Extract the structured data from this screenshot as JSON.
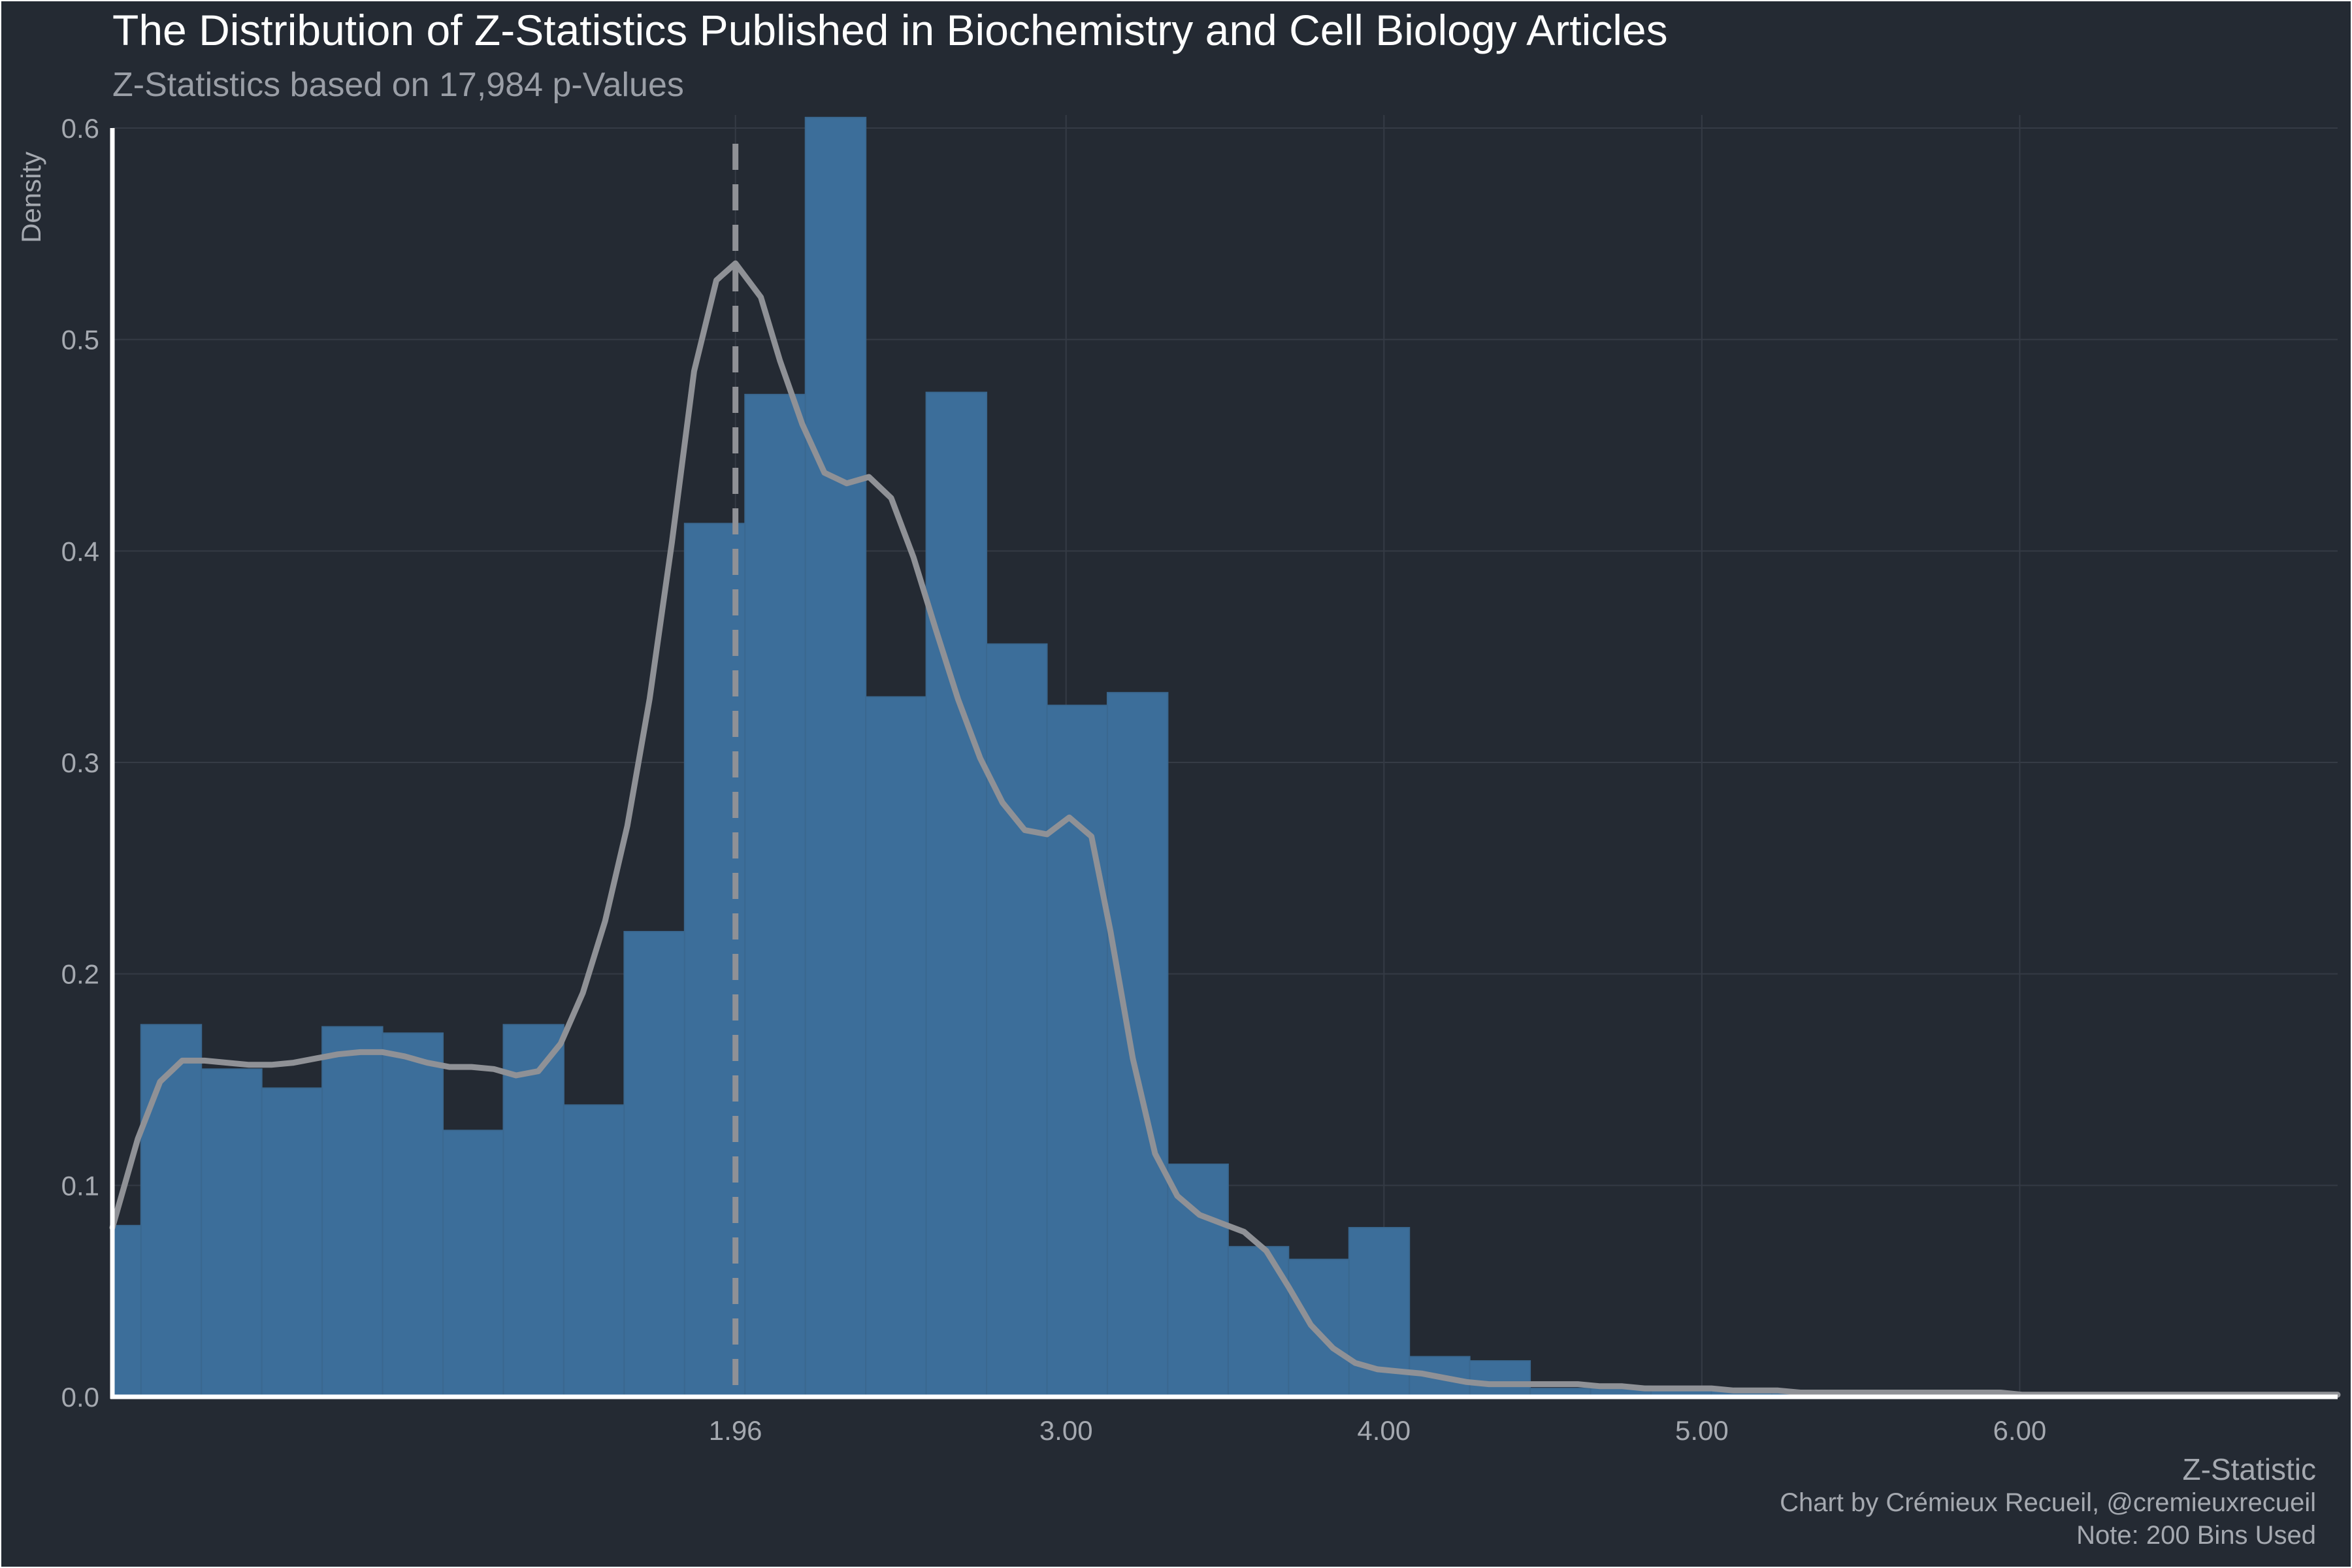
{
  "chart_data": {
    "type": "bar",
    "title": "The Distribution of Z-Statistics Published in Biochemistry and Cell Biology Articles",
    "subtitle": "Z-Statistics based on 17,984 p-Values",
    "xlabel": "Z-Statistic",
    "ylabel": "Density",
    "caption": [
      "Chart by Crémieux Recueil, @cremieuxrecueil",
      "Note: 200 Bins Used"
    ],
    "xlim": [
      0.0,
      7.0
    ],
    "ylim": [
      0.0,
      0.6
    ],
    "grid": true,
    "x_ticks": [
      {
        "value": 1.96,
        "label": "1.96"
      },
      {
        "value": 3.0,
        "label": "3.00"
      },
      {
        "value": 4.0,
        "label": "4.00"
      },
      {
        "value": 5.0,
        "label": "5.00"
      },
      {
        "value": 6.0,
        "label": "6.00"
      }
    ],
    "y_ticks": [
      {
        "value": 0.0,
        "label": "0.0"
      },
      {
        "value": 0.1,
        "label": "0.1"
      },
      {
        "value": 0.2,
        "label": "0.2"
      },
      {
        "value": 0.3,
        "label": "0.3"
      },
      {
        "value": 0.4,
        "label": "0.4"
      },
      {
        "value": 0.5,
        "label": "0.5"
      },
      {
        "value": 0.6,
        "label": "0.6"
      }
    ],
    "bins": [
      {
        "x0": 0.0,
        "x1": 0.09,
        "density": 0.081
      },
      {
        "x0": 0.09,
        "x1": 0.28,
        "density": 0.176
      },
      {
        "x0": 0.28,
        "x1": 0.47,
        "density": 0.155
      },
      {
        "x0": 0.47,
        "x1": 0.66,
        "density": 0.146
      },
      {
        "x0": 0.66,
        "x1": 0.85,
        "density": 0.175
      },
      {
        "x0": 0.85,
        "x1": 1.04,
        "density": 0.172
      },
      {
        "x0": 1.04,
        "x1": 1.23,
        "density": 0.126
      },
      {
        "x0": 1.23,
        "x1": 1.42,
        "density": 0.176
      },
      {
        "x0": 1.42,
        "x1": 1.61,
        "density": 0.138
      },
      {
        "x0": 1.61,
        "x1": 1.8,
        "density": 0.22
      },
      {
        "x0": 1.8,
        "x1": 1.99,
        "density": 0.413
      },
      {
        "x0": 1.99,
        "x1": 2.18,
        "density": 0.474
      },
      {
        "x0": 2.18,
        "x1": 2.37,
        "density": 0.605
      },
      {
        "x0": 2.37,
        "x1": 2.56,
        "density": 0.331
      },
      {
        "x0": 2.56,
        "x1": 2.75,
        "density": 0.475
      },
      {
        "x0": 2.75,
        "x1": 2.94,
        "density": 0.356
      },
      {
        "x0": 2.94,
        "x1": 3.13,
        "density": 0.327
      },
      {
        "x0": 3.13,
        "x1": 3.32,
        "density": 0.333
      },
      {
        "x0": 3.32,
        "x1": 3.51,
        "density": 0.11
      },
      {
        "x0": 3.51,
        "x1": 3.7,
        "density": 0.071
      },
      {
        "x0": 3.7,
        "x1": 3.89,
        "density": 0.065
      },
      {
        "x0": 3.89,
        "x1": 4.08,
        "density": 0.08
      },
      {
        "x0": 4.08,
        "x1": 4.27,
        "density": 0.019
      },
      {
        "x0": 4.27,
        "x1": 4.46,
        "density": 0.017
      },
      {
        "x0": 4.46,
        "x1": 4.65,
        "density": 0.004
      },
      {
        "x0": 4.65,
        "x1": 4.84,
        "density": 0.005
      },
      {
        "x0": 4.84,
        "x1": 5.03,
        "density": 0.004
      },
      {
        "x0": 5.03,
        "x1": 5.22,
        "density": 0.003
      },
      {
        "x0": 5.22,
        "x1": 5.41,
        "density": 0.003
      },
      {
        "x0": 5.41,
        "x1": 5.6,
        "density": 0.002
      },
      {
        "x0": 5.6,
        "x1": 5.79,
        "density": 0.002
      },
      {
        "x0": 5.79,
        "x1": 5.98,
        "density": 0.002
      },
      {
        "x0": 5.98,
        "x1": 6.17,
        "density": 0.001
      },
      {
        "x0": 6.17,
        "x1": 6.36,
        "density": 0.001
      },
      {
        "x0": 6.36,
        "x1": 6.55,
        "density": 0.001
      },
      {
        "x0": 6.55,
        "x1": 6.74,
        "density": 0.001
      },
      {
        "x0": 6.74,
        "x1": 6.93,
        "density": 0.001
      }
    ],
    "density_curve": {
      "x": [
        0.0,
        0.08,
        0.15,
        0.22,
        0.29,
        0.36,
        0.43,
        0.5,
        0.57,
        0.64,
        0.71,
        0.78,
        0.85,
        0.92,
        0.99,
        1.06,
        1.13,
        1.2,
        1.27,
        1.34,
        1.41,
        1.48,
        1.55,
        1.62,
        1.69,
        1.76,
        1.83,
        1.9,
        1.96,
        2.04,
        2.1,
        2.17,
        2.24,
        2.31,
        2.38,
        2.45,
        2.52,
        2.59,
        2.66,
        2.73,
        2.8,
        2.87,
        2.94,
        3.01,
        3.08,
        3.14,
        3.21,
        3.28,
        3.35,
        3.42,
        3.49,
        3.56,
        3.63,
        3.7,
        3.77,
        3.84,
        3.91,
        3.98,
        4.05,
        4.12,
        4.19,
        4.26,
        4.33,
        4.4,
        4.47,
        4.54,
        4.61,
        4.68,
        4.75,
        4.82,
        4.89,
        4.96,
        5.03,
        5.1,
        5.17,
        5.24,
        5.31,
        5.38,
        5.45,
        5.52,
        5.59,
        5.66,
        5.73,
        5.8,
        5.87,
        5.94,
        6.01,
        6.08,
        6.15,
        6.22,
        6.29,
        6.36,
        6.43,
        6.5,
        6.57,
        6.64,
        6.71,
        6.78,
        6.85,
        6.92,
        7.0
      ],
      "y": [
        0.08,
        0.122,
        0.149,
        0.159,
        0.159,
        0.158,
        0.157,
        0.157,
        0.158,
        0.16,
        0.162,
        0.163,
        0.163,
        0.161,
        0.158,
        0.156,
        0.156,
        0.155,
        0.152,
        0.154,
        0.167,
        0.191,
        0.225,
        0.27,
        0.33,
        0.404,
        0.485,
        0.528,
        0.536,
        0.52,
        0.49,
        0.46,
        0.437,
        0.432,
        0.435,
        0.425,
        0.397,
        0.363,
        0.33,
        0.302,
        0.281,
        0.268,
        0.266,
        0.274,
        0.265,
        0.22,
        0.16,
        0.115,
        0.095,
        0.086,
        0.082,
        0.078,
        0.069,
        0.052,
        0.034,
        0.023,
        0.016,
        0.013,
        0.012,
        0.011,
        0.009,
        0.007,
        0.006,
        0.006,
        0.006,
        0.006,
        0.006,
        0.005,
        0.005,
        0.004,
        0.004,
        0.004,
        0.004,
        0.003,
        0.003,
        0.003,
        0.002,
        0.002,
        0.002,
        0.002,
        0.002,
        0.002,
        0.002,
        0.002,
        0.002,
        0.002,
        0.001,
        0.001,
        0.001,
        0.001,
        0.001,
        0.001,
        0.001,
        0.001,
        0.001,
        0.001,
        0.001,
        0.001,
        0.001,
        0.001,
        0.001
      ]
    },
    "reference_line": {
      "x": 1.96,
      "style": "dashed"
    },
    "colors": {
      "background": "#242a33",
      "bars": "#3c6e9a",
      "bar_edge": "#3a6890",
      "density_line": "#8f9196",
      "reference_line": "#8f9196",
      "grid": "#353b45",
      "axis": "#ffffff"
    }
  }
}
